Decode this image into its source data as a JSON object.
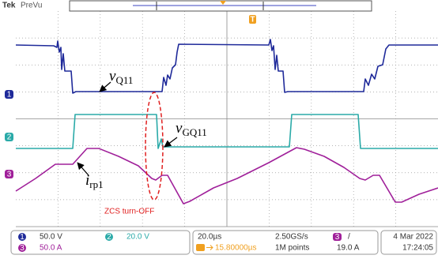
{
  "header": {
    "brand": "Tek",
    "mode": "PreVu",
    "trigger_marker": "T"
  },
  "annotations": {
    "vq11": {
      "symbol": "v",
      "subscript": "Q11"
    },
    "vgq11": {
      "symbol": "v",
      "subscript": "GQ11"
    },
    "irp1": {
      "symbol": "i",
      "subscript": "rp1"
    },
    "zcs": "ZCS turn-OFF"
  },
  "status_bar": {
    "channels": [
      {
        "number": "1",
        "scale": "50.0 V"
      },
      {
        "number": "2",
        "scale": "20.0 V"
      },
      {
        "number": "3",
        "scale": "50.0 A"
      }
    ],
    "timebase": "20.0µs",
    "sample_rate": "2.50GS/s",
    "record_length": "1M points",
    "position": "15.80000µs",
    "trigger": {
      "source": "3",
      "slope": "/",
      "level": "19.0 A"
    },
    "date": "4 Mar 2022",
    "time": "17:24:05"
  }
}
